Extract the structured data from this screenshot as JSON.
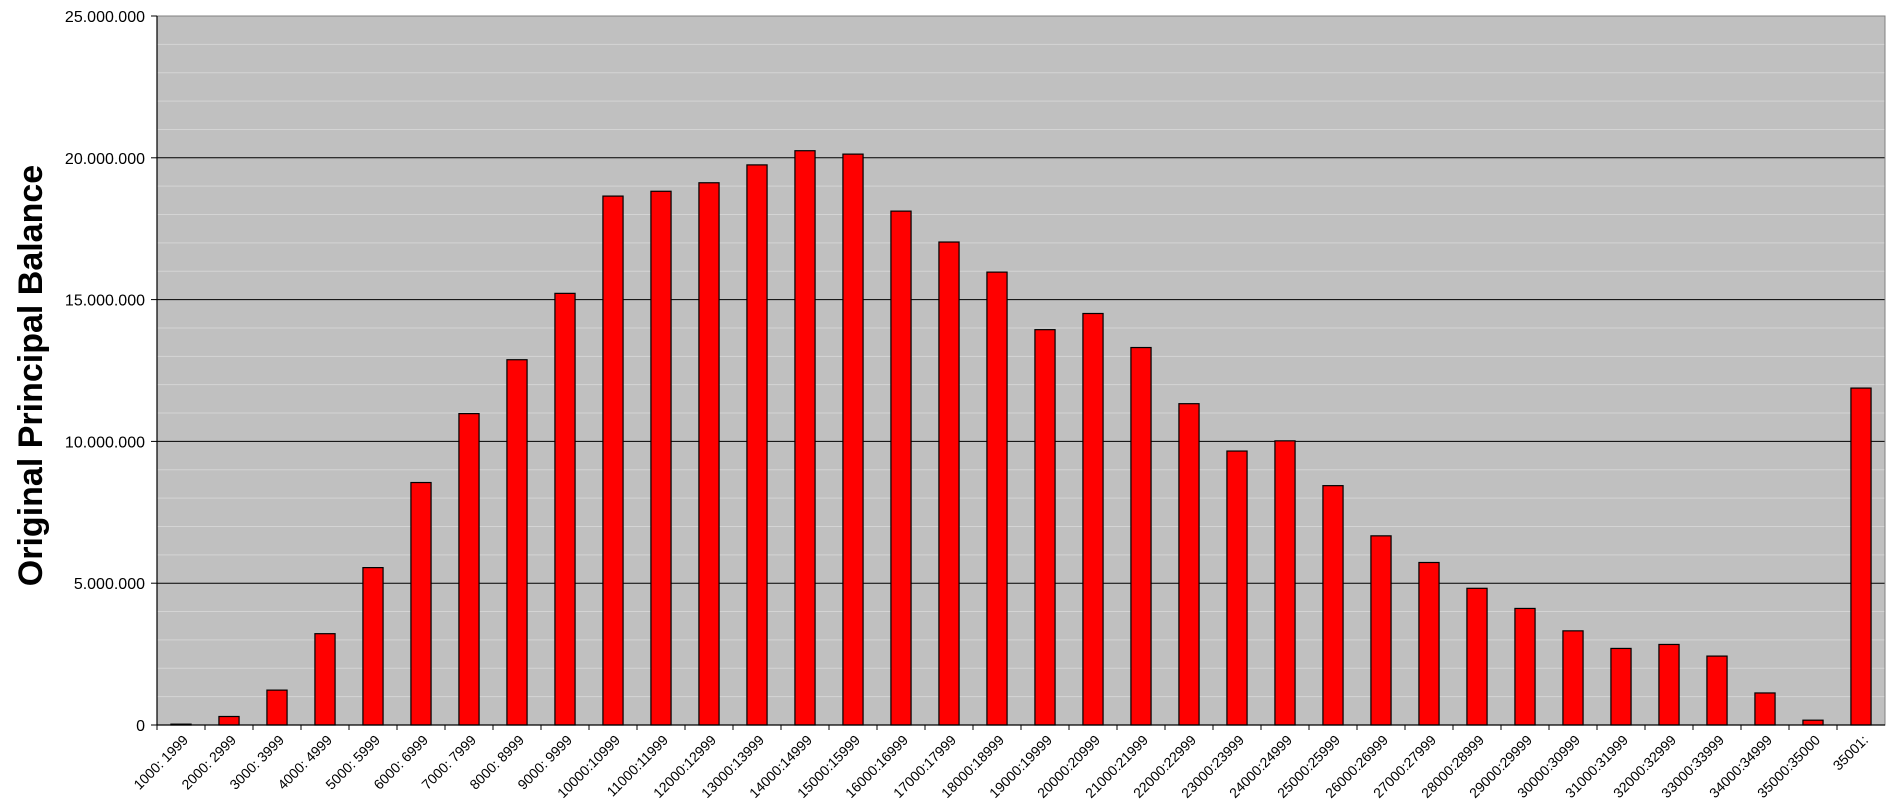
{
  "chart_data": {
    "type": "bar",
    "title": "",
    "xlabel": "",
    "ylabel": "Original Principal Balance",
    "ylim": [
      0,
      25000000
    ],
    "yticks": [
      0,
      5000000,
      10000000,
      15000000,
      20000000,
      25000000
    ],
    "ytick_labels": [
      "0",
      "5.000.000",
      "10.000.000",
      "15.000.000",
      "20.000.000",
      "25.000.000"
    ],
    "grid": true,
    "legend": "none",
    "categories": [
      "1000: 1999",
      "2000: 2999",
      "3000: 3999",
      "4000: 4999",
      "5000: 5999",
      "6000: 6999",
      "7000: 7999",
      "8000: 8999",
      "9000: 9999",
      "10000:10999",
      "11000:11999",
      "12000:12999",
      "13000:13999",
      "14000:14999",
      "15000:15999",
      "16000:16999",
      "17000:17999",
      "18000:18999",
      "19000:19999",
      "20000:20999",
      "21000:21999",
      "22000:22999",
      "23000:23999",
      "24000:24999",
      "25000:25999",
      "26000:26999",
      "27000:27999",
      "28000:28999",
      "29000:29999",
      "30000:30999",
      "31000:31999",
      "32000:32999",
      "33000:33999",
      "34000:34999",
      "35000:35000",
      "35001:"
    ],
    "values": [
      30000,
      300000,
      1230000,
      3220000,
      5550000,
      8550000,
      10980000,
      12880000,
      15220000,
      18650000,
      18820000,
      19120000,
      19750000,
      20250000,
      20130000,
      18120000,
      17030000,
      15970000,
      13940000,
      14510000,
      13310000,
      11330000,
      9660000,
      10020000,
      8440000,
      6670000,
      5730000,
      4820000,
      4110000,
      3320000,
      2700000,
      2840000,
      2430000,
      1130000,
      170000,
      11880000
    ],
    "colors": {
      "bar_fill": "#ff0000",
      "bar_stroke": "#000000",
      "plot_background": "#c0c0c0",
      "major_grid": "#000000",
      "minor_grid": "#d4d4d4"
    }
  }
}
